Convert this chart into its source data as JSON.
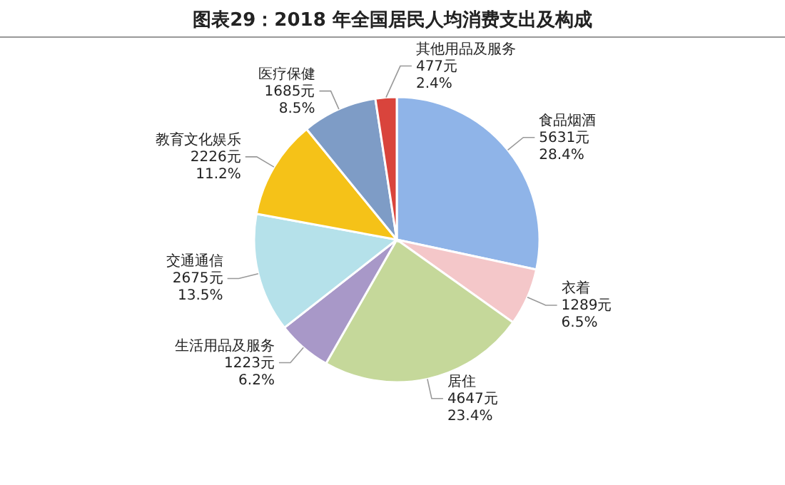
{
  "chart_data": {
    "type": "pie",
    "title": "图表29：2018 年全国居民人均消费支出及构成",
    "categories": [
      "食品烟酒",
      "衣着",
      "居住",
      "生活用品及服务",
      "交通通信",
      "教育文化娱乐",
      "医疗保健",
      "其他用品及服务"
    ],
    "values": [
      5631,
      1289,
      4647,
      1223,
      2675,
      2226,
      1685,
      477
    ],
    "value_labels": [
      "5631元\n28.4%",
      "1289元\n6.5%",
      "4647元\n23.4%",
      "1223元\n6.2%",
      "2675元\n13.5%",
      "2226元\n11.2%",
      "1685元\n8.5%",
      "477元\n2.4%"
    ],
    "colors": [
      "#8fb4e8",
      "#f4c7c9",
      "#c5d89a",
      "#a898c8",
      "#b5e1ea",
      "#f5c218",
      "#7e9cc6",
      "#d9443c"
    ]
  }
}
